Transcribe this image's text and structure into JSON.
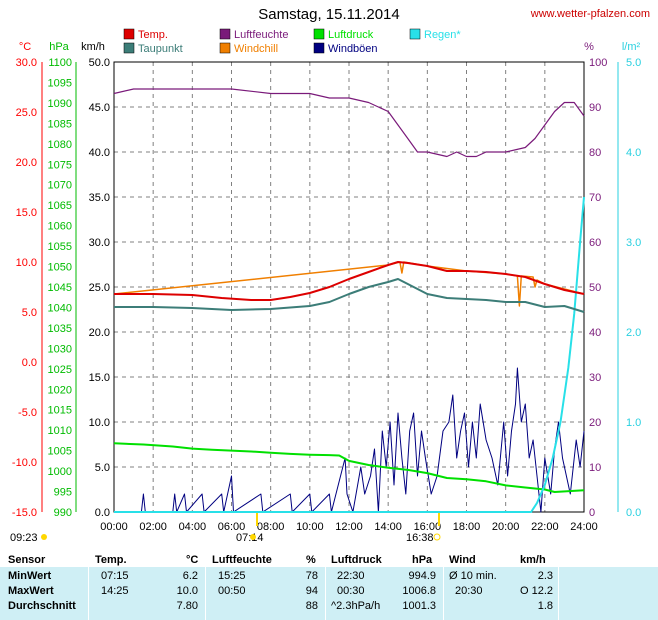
{
  "header": {
    "title": "Samstag, 15.11.2014",
    "website": "www.wetter-pfalzen.com"
  },
  "colors": {
    "temp": "#dd0000",
    "taupunkt": "#3c7d78",
    "luftfeuchte": "#7a1a7a",
    "windchill": "#f07f00",
    "luftdruck": "#00e000",
    "windboeen": "#000080",
    "regen": "#28e0e8",
    "temp_axis": "#ff0000",
    "hpa_axis": "#00bb00",
    "kmh_axis": "#000000",
    "pct_axis": "#7a1a7a",
    "rain_axis": "#28d0e0",
    "table_bg": "#cfeff5"
  },
  "legend": [
    {
      "label": "Temp.",
      "color": "#dd0000"
    },
    {
      "label": "Luftfeuchte",
      "color": "#7a1a7a"
    },
    {
      "label": "Luftdruck",
      "color": "#00e000"
    },
    {
      "label": "Regen*",
      "color": "#28e0e8"
    },
    {
      "label": "Taupunkt",
      "color": "#3c7d78"
    },
    {
      "label": "Windchill",
      "color": "#f07f00"
    },
    {
      "label": "Windböen",
      "color": "#000080"
    }
  ],
  "axis_units": {
    "temp": "°C",
    "hpa": "hPa",
    "kmh": "km/h",
    "pct": "%",
    "rain": "l/m²"
  },
  "sun": {
    "sunrise_date": "09:23",
    "sunrise": "07:14",
    "sunset": "16:38"
  },
  "chart_data": {
    "type": "line",
    "title": "Samstag, 15.11.2014",
    "x_ticks": [
      "00:00",
      "02:00",
      "04:00",
      "06:00",
      "08:00",
      "10:00",
      "12:00",
      "14:00",
      "16:00",
      "18:00",
      "20:00",
      "22:00",
      "24:00"
    ],
    "x_range_hours": [
      0,
      24
    ],
    "grid": true,
    "axes": {
      "temp": {
        "label": "°C",
        "range": [
          -15,
          30
        ],
        "ticks": [
          "30.0",
          "25.0",
          "20.0",
          "15.0",
          "10.0",
          "5.0",
          "0.0",
          "-5.0",
          "-10.0",
          "-15.0"
        ]
      },
      "hpa": {
        "label": "hPa",
        "range": [
          990,
          1100
        ],
        "ticks": [
          "1100",
          "1095",
          "1090",
          "1085",
          "1080",
          "1075",
          "1070",
          "1065",
          "1060",
          "1055",
          "1050",
          "1045",
          "1040",
          "1035",
          "1030",
          "1025",
          "1020",
          "1015",
          "1010",
          "1005",
          "1000",
          "995",
          "990"
        ]
      },
      "kmh": {
        "label": "km/h",
        "range": [
          0,
          50
        ],
        "ticks": [
          "50.0",
          "45.0",
          "40.0",
          "35.0",
          "30.0",
          "25.0",
          "20.0",
          "15.0",
          "10.0",
          "5.0",
          "0.0"
        ]
      },
      "pct": {
        "label": "%",
        "range": [
          0,
          100
        ],
        "ticks": [
          "100",
          "90",
          "80",
          "70",
          "60",
          "50",
          "40",
          "30",
          "20",
          "10",
          "0"
        ]
      },
      "rain": {
        "label": "l/m²",
        "range": [
          0,
          5
        ],
        "ticks": [
          "5.0",
          "4.0",
          "3.0",
          "2.0",
          "1.0",
          "0.0"
        ]
      }
    },
    "series": [
      {
        "name": "Temp.",
        "axis": "temp",
        "color": "#dd0000",
        "points": [
          [
            0,
            6.8
          ],
          [
            2,
            6.8
          ],
          [
            4,
            6.7
          ],
          [
            5.5,
            6.4
          ],
          [
            7,
            6.2
          ],
          [
            8,
            6.2
          ],
          [
            9,
            6.5
          ],
          [
            10,
            6.9
          ],
          [
            11,
            7.5
          ],
          [
            12,
            8.3
          ],
          [
            13,
            9.0
          ],
          [
            14,
            9.7
          ],
          [
            14.5,
            10.0
          ],
          [
            15,
            9.9
          ],
          [
            16,
            9.6
          ],
          [
            17,
            9.1
          ],
          [
            18,
            9.1
          ],
          [
            19,
            9.0
          ],
          [
            20,
            8.8
          ],
          [
            21,
            8.5
          ],
          [
            22,
            7.8
          ],
          [
            23,
            7.2
          ],
          [
            24,
            6.8
          ]
        ]
      },
      {
        "name": "Taupunkt",
        "axis": "temp",
        "color": "#3c7d78",
        "points": [
          [
            0,
            5.5
          ],
          [
            2,
            5.5
          ],
          [
            4,
            5.4
          ],
          [
            6,
            5.2
          ],
          [
            8,
            5.3
          ],
          [
            10,
            5.6
          ],
          [
            11,
            6.0
          ],
          [
            12,
            6.8
          ],
          [
            13,
            7.5
          ],
          [
            14,
            8.0
          ],
          [
            14.5,
            8.3
          ],
          [
            15,
            7.8
          ],
          [
            16,
            6.8
          ],
          [
            17,
            6.4
          ],
          [
            18,
            6.3
          ],
          [
            19,
            6.2
          ],
          [
            20,
            6.0
          ],
          [
            21,
            6.0
          ],
          [
            22,
            5.5
          ],
          [
            23,
            5.6
          ],
          [
            24,
            5.0
          ]
        ]
      },
      {
        "name": "Windchill",
        "axis": "temp",
        "color": "#f07f00",
        "points": [
          [
            0,
            6.8
          ],
          [
            14,
            9.7
          ],
          [
            14.6,
            10.0
          ],
          [
            14.7,
            8.9
          ],
          [
            14.8,
            10.0
          ],
          [
            16,
            9.6
          ],
          [
            18,
            9.1
          ],
          [
            20,
            8.8
          ],
          [
            20.6,
            8.6
          ],
          [
            20.7,
            5.6
          ],
          [
            20.8,
            8.6
          ],
          [
            21.4,
            8.5
          ],
          [
            21.5,
            7.5
          ],
          [
            21.6,
            8.2
          ],
          [
            22,
            7.8
          ],
          [
            24,
            6.8
          ]
        ]
      },
      {
        "name": "Luftfeuchte",
        "axis": "pct",
        "color": "#7a1a7a",
        "points": [
          [
            0,
            93
          ],
          [
            1,
            94
          ],
          [
            2,
            94
          ],
          [
            4,
            94
          ],
          [
            6,
            94
          ],
          [
            8,
            93
          ],
          [
            10,
            93
          ],
          [
            11,
            92
          ],
          [
            12,
            92
          ],
          [
            13,
            91
          ],
          [
            13.5,
            90
          ],
          [
            14,
            89
          ],
          [
            14.5,
            86
          ],
          [
            15,
            83
          ],
          [
            15.5,
            80
          ],
          [
            16,
            80
          ],
          [
            17,
            79
          ],
          [
            17.5,
            80
          ],
          [
            18,
            79
          ],
          [
            18.5,
            79
          ],
          [
            19,
            80
          ],
          [
            20,
            80
          ],
          [
            21,
            81
          ],
          [
            21.5,
            83
          ],
          [
            22,
            86
          ],
          [
            22.5,
            89
          ],
          [
            23,
            91
          ],
          [
            23.5,
            91
          ],
          [
            24,
            88
          ]
        ]
      },
      {
        "name": "Luftdruck",
        "axis": "hpa",
        "color": "#00e000",
        "points": [
          [
            0,
            1006.8
          ],
          [
            1.5,
            1006.5
          ],
          [
            3,
            1006
          ],
          [
            4,
            1005.5
          ],
          [
            5,
            1005.2
          ],
          [
            6,
            1005
          ],
          [
            7,
            1004.8
          ],
          [
            8,
            1004.5
          ],
          [
            9,
            1004.2
          ],
          [
            10,
            1004
          ],
          [
            11,
            1003.9
          ],
          [
            11.5,
            1003.8
          ],
          [
            12,
            1002.5
          ],
          [
            13,
            1001.5
          ],
          [
            14,
            1000.8
          ],
          [
            15,
            1000.3
          ],
          [
            16,
            999.5
          ],
          [
            17,
            998.3
          ],
          [
            18,
            998.0
          ],
          [
            19,
            997.5
          ],
          [
            20,
            996.5
          ],
          [
            21,
            996
          ],
          [
            22,
            995.5
          ],
          [
            22.5,
            994.9
          ],
          [
            24,
            995.3
          ]
        ]
      },
      {
        "name": "Windböen",
        "axis": "kmh",
        "color": "#000080",
        "points": [
          [
            0,
            0
          ],
          [
            1.4,
            0
          ],
          [
            1.5,
            2
          ],
          [
            1.6,
            0
          ],
          [
            3,
            0
          ],
          [
            3.1,
            2
          ],
          [
            3.2,
            0
          ],
          [
            3.6,
            2
          ],
          [
            3.7,
            0
          ],
          [
            4.5,
            2
          ],
          [
            4.6,
            0
          ],
          [
            5.5,
            2
          ],
          [
            5.6,
            0
          ],
          [
            6,
            4
          ],
          [
            6.1,
            0
          ],
          [
            7.5,
            2
          ],
          [
            7.6,
            0
          ],
          [
            9,
            2
          ],
          [
            9.1,
            0
          ],
          [
            10,
            2
          ],
          [
            10.1,
            0
          ],
          [
            11,
            2
          ],
          [
            11.1,
            0
          ],
          [
            11.8,
            6
          ],
          [
            11.9,
            2
          ],
          [
            12.2,
            0
          ],
          [
            12.6,
            5
          ],
          [
            12.8,
            2
          ],
          [
            13.1,
            4
          ],
          [
            13.3,
            7
          ],
          [
            13.5,
            0
          ],
          [
            13.7,
            9
          ],
          [
            13.9,
            5
          ],
          [
            14.1,
            10
          ],
          [
            14.3,
            3
          ],
          [
            14.5,
            11
          ],
          [
            14.7,
            6
          ],
          [
            14.9,
            2
          ],
          [
            15.1,
            9
          ],
          [
            15.3,
            11
          ],
          [
            15.5,
            4
          ],
          [
            15.7,
            9
          ],
          [
            15.9,
            6
          ],
          [
            16.2,
            2
          ],
          [
            16.5,
            4
          ],
          [
            16.8,
            9
          ],
          [
            17.1,
            10
          ],
          [
            17.3,
            13
          ],
          [
            17.5,
            6
          ],
          [
            17.7,
            9
          ],
          [
            17.9,
            11
          ],
          [
            18.1,
            5
          ],
          [
            18.3,
            10
          ],
          [
            18.5,
            6
          ],
          [
            18.7,
            12
          ],
          [
            19,
            8
          ],
          [
            19.3,
            6
          ],
          [
            19.6,
            3
          ],
          [
            19.9,
            10
          ],
          [
            20.1,
            4
          ],
          [
            20.3,
            9
          ],
          [
            20.5,
            12
          ],
          [
            20.6,
            16
          ],
          [
            20.8,
            10
          ],
          [
            21,
            12
          ],
          [
            21.2,
            6
          ],
          [
            21.4,
            8
          ],
          [
            21.6,
            4
          ],
          [
            21.8,
            0
          ],
          [
            22,
            6
          ],
          [
            22.3,
            2
          ],
          [
            22.5,
            7
          ],
          [
            22.7,
            10
          ],
          [
            22.9,
            6
          ],
          [
            23.1,
            4
          ],
          [
            23.3,
            2
          ],
          [
            23.6,
            8
          ],
          [
            23.8,
            5
          ],
          [
            24,
            9
          ]
        ]
      },
      {
        "name": "Regen*",
        "axis": "rain",
        "color": "#28e0e8",
        "points": [
          [
            0,
            0
          ],
          [
            21.3,
            0
          ],
          [
            21.6,
            0.1
          ],
          [
            22,
            0.3
          ],
          [
            22.4,
            0.6
          ],
          [
            22.8,
            1.0
          ],
          [
            23.2,
            1.6
          ],
          [
            23.5,
            2.2
          ],
          [
            23.8,
            3.0
          ],
          [
            24,
            3.5
          ]
        ]
      }
    ]
  },
  "table": {
    "headers": {
      "sensor": "Sensor",
      "temp": "Temp.",
      "temp_unit": "°C",
      "hum": "Luftfeuchte",
      "hum_unit": "%",
      "press": "Luftdruck",
      "press_unit": "hPa",
      "wind": "Wind",
      "wind_unit": "km/h"
    },
    "rows": [
      {
        "label": "MinWert",
        "temp_time": "07:15",
        "temp_val": "6.2",
        "hum_time": "15:25",
        "hum_val": "78",
        "press_time": "22:30",
        "press_val": "994.9",
        "wind_time": "Ø 10 min.",
        "wind_val": "2.3"
      },
      {
        "label": "MaxWert",
        "temp_time": "14:25",
        "temp_val": "10.0",
        "hum_time": "00:50",
        "hum_val": "94",
        "press_time": "00:30",
        "press_val": "1006.8",
        "wind_time": "20:30",
        "wind_val": "O 12.2"
      },
      {
        "label": "Durchschnitt",
        "temp_time": "",
        "temp_val": "7.80",
        "hum_time": "",
        "hum_val": "88",
        "press_time": "^2.3hPa/h",
        "press_val": "1001.3",
        "wind_time": "",
        "wind_val": "1.8"
      }
    ]
  }
}
